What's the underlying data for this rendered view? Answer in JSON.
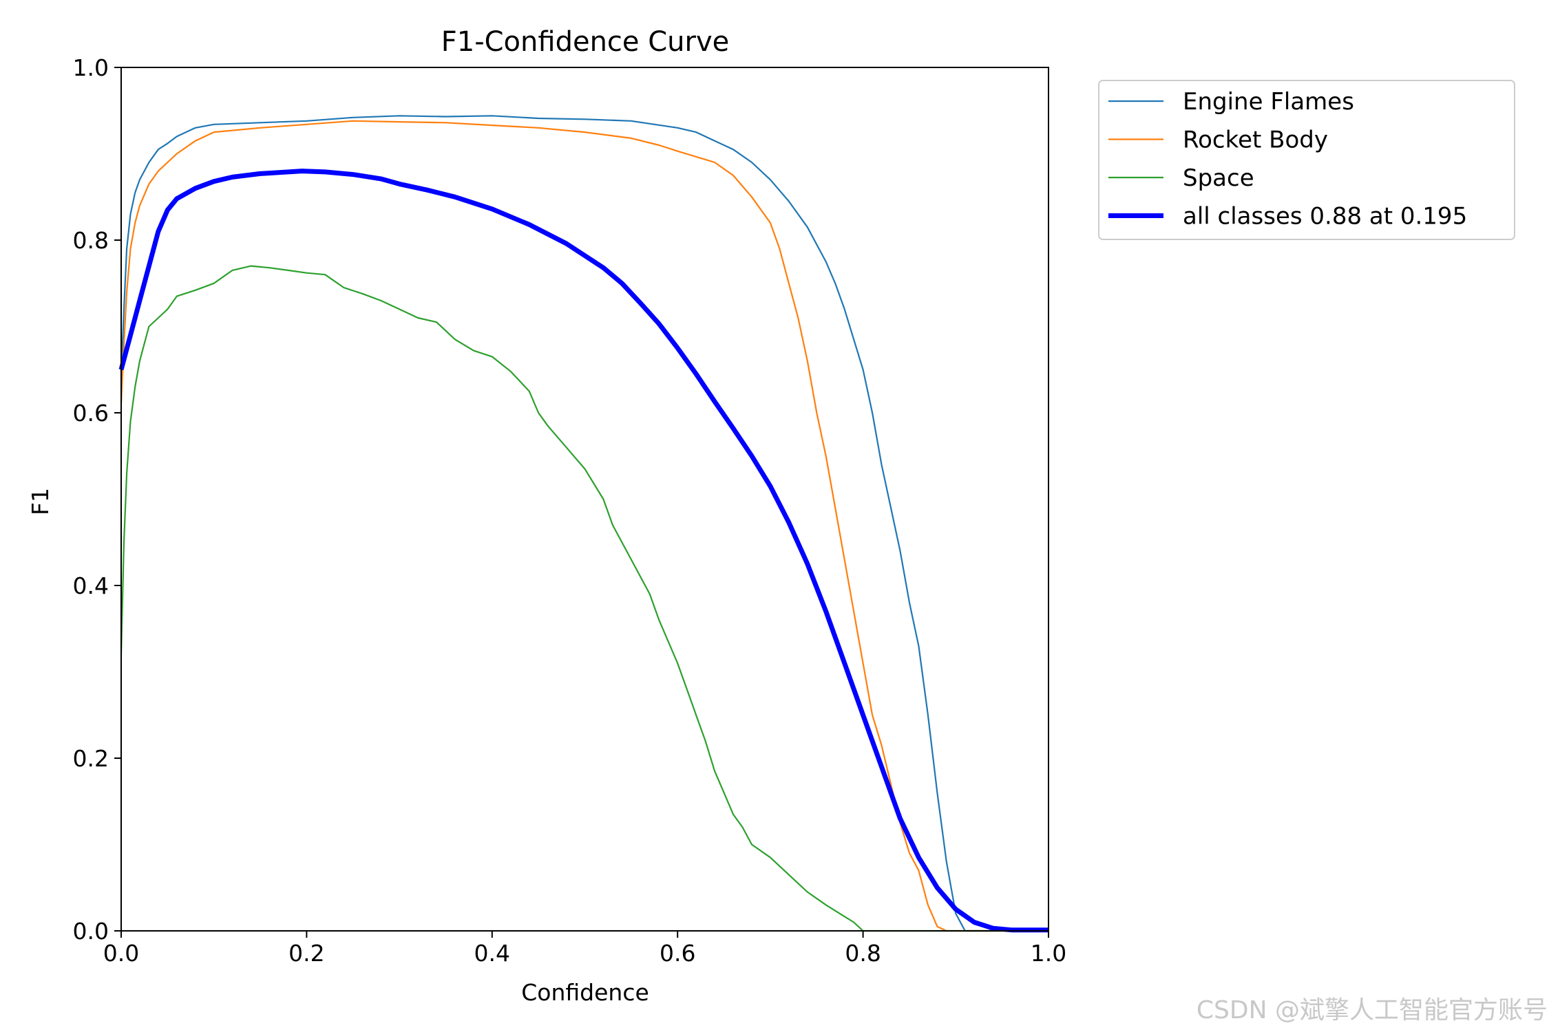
{
  "chart_data": {
    "type": "line",
    "title": "F1-Confidence Curve",
    "xlabel": "Confidence",
    "ylabel": "F1",
    "xlim": [
      0,
      1
    ],
    "ylim": [
      0,
      1
    ],
    "x_ticks": [
      "0.0",
      "0.2",
      "0.4",
      "0.6",
      "0.8",
      "1.0"
    ],
    "y_ticks": [
      "0.0",
      "0.2",
      "0.4",
      "0.6",
      "0.8",
      "1.0"
    ],
    "grid": false,
    "legend_position": "outside-top-right",
    "series": [
      {
        "name": "Engine Flames",
        "color": "#1f77b4",
        "width": "thin",
        "points": [
          [
            0,
            0.64
          ],
          [
            0.003,
            0.72
          ],
          [
            0.006,
            0.79
          ],
          [
            0.01,
            0.83
          ],
          [
            0.015,
            0.855
          ],
          [
            0.02,
            0.87
          ],
          [
            0.03,
            0.89
          ],
          [
            0.04,
            0.905
          ],
          [
            0.05,
            0.912
          ],
          [
            0.06,
            0.92
          ],
          [
            0.08,
            0.93
          ],
          [
            0.1,
            0.934
          ],
          [
            0.15,
            0.936
          ],
          [
            0.2,
            0.938
          ],
          [
            0.25,
            0.942
          ],
          [
            0.3,
            0.944
          ],
          [
            0.35,
            0.943
          ],
          [
            0.4,
            0.944
          ],
          [
            0.45,
            0.941
          ],
          [
            0.5,
            0.94
          ],
          [
            0.55,
            0.938
          ],
          [
            0.6,
            0.93
          ],
          [
            0.62,
            0.925
          ],
          [
            0.64,
            0.915
          ],
          [
            0.66,
            0.905
          ],
          [
            0.68,
            0.89
          ],
          [
            0.7,
            0.87
          ],
          [
            0.72,
            0.845
          ],
          [
            0.74,
            0.815
          ],
          [
            0.76,
            0.775
          ],
          [
            0.77,
            0.75
          ],
          [
            0.78,
            0.72
          ],
          [
            0.8,
            0.65
          ],
          [
            0.81,
            0.6
          ],
          [
            0.82,
            0.54
          ],
          [
            0.83,
            0.49
          ],
          [
            0.84,
            0.44
          ],
          [
            0.85,
            0.38
          ],
          [
            0.86,
            0.33
          ],
          [
            0.87,
            0.25
          ],
          [
            0.88,
            0.16
          ],
          [
            0.89,
            0.08
          ],
          [
            0.9,
            0.02
          ],
          [
            0.91,
            0.0
          ],
          [
            1.0,
            0.0
          ]
        ]
      },
      {
        "name": "Rocket Body",
        "color": "#ff7f0e",
        "width": "thin",
        "points": [
          [
            0,
            0.61
          ],
          [
            0.003,
            0.68
          ],
          [
            0.006,
            0.74
          ],
          [
            0.01,
            0.79
          ],
          [
            0.015,
            0.82
          ],
          [
            0.02,
            0.84
          ],
          [
            0.03,
            0.865
          ],
          [
            0.04,
            0.88
          ],
          [
            0.05,
            0.89
          ],
          [
            0.06,
            0.9
          ],
          [
            0.08,
            0.915
          ],
          [
            0.1,
            0.925
          ],
          [
            0.15,
            0.93
          ],
          [
            0.2,
            0.934
          ],
          [
            0.25,
            0.938
          ],
          [
            0.3,
            0.937
          ],
          [
            0.35,
            0.936
          ],
          [
            0.4,
            0.933
          ],
          [
            0.45,
            0.93
          ],
          [
            0.5,
            0.925
          ],
          [
            0.55,
            0.918
          ],
          [
            0.58,
            0.91
          ],
          [
            0.6,
            0.903
          ],
          [
            0.64,
            0.89
          ],
          [
            0.66,
            0.875
          ],
          [
            0.68,
            0.85
          ],
          [
            0.7,
            0.82
          ],
          [
            0.71,
            0.79
          ],
          [
            0.72,
            0.75
          ],
          [
            0.73,
            0.71
          ],
          [
            0.74,
            0.66
          ],
          [
            0.75,
            0.6
          ],
          [
            0.76,
            0.55
          ],
          [
            0.77,
            0.49
          ],
          [
            0.78,
            0.43
          ],
          [
            0.79,
            0.37
          ],
          [
            0.8,
            0.31
          ],
          [
            0.81,
            0.25
          ],
          [
            0.82,
            0.215
          ],
          [
            0.83,
            0.17
          ],
          [
            0.84,
            0.125
          ],
          [
            0.85,
            0.09
          ],
          [
            0.86,
            0.07
          ],
          [
            0.87,
            0.03
          ],
          [
            0.88,
            0.005
          ],
          [
            0.89,
            0.0
          ],
          [
            1.0,
            0.0
          ]
        ]
      },
      {
        "name": "Space",
        "color": "#2ca02c",
        "width": "thin",
        "points": [
          [
            0,
            0.32
          ],
          [
            0.003,
            0.45
          ],
          [
            0.006,
            0.53
          ],
          [
            0.01,
            0.59
          ],
          [
            0.015,
            0.63
          ],
          [
            0.02,
            0.66
          ],
          [
            0.03,
            0.7
          ],
          [
            0.04,
            0.71
          ],
          [
            0.05,
            0.72
          ],
          [
            0.06,
            0.735
          ],
          [
            0.08,
            0.742
          ],
          [
            0.1,
            0.75
          ],
          [
            0.12,
            0.765
          ],
          [
            0.14,
            0.77
          ],
          [
            0.16,
            0.768
          ],
          [
            0.18,
            0.765
          ],
          [
            0.2,
            0.762
          ],
          [
            0.22,
            0.76
          ],
          [
            0.24,
            0.745
          ],
          [
            0.26,
            0.738
          ],
          [
            0.28,
            0.73
          ],
          [
            0.3,
            0.72
          ],
          [
            0.32,
            0.71
          ],
          [
            0.34,
            0.705
          ],
          [
            0.36,
            0.685
          ],
          [
            0.38,
            0.672
          ],
          [
            0.4,
            0.665
          ],
          [
            0.42,
            0.648
          ],
          [
            0.44,
            0.625
          ],
          [
            0.45,
            0.6
          ],
          [
            0.46,
            0.585
          ],
          [
            0.48,
            0.56
          ],
          [
            0.5,
            0.535
          ],
          [
            0.52,
            0.5
          ],
          [
            0.53,
            0.47
          ],
          [
            0.55,
            0.43
          ],
          [
            0.57,
            0.39
          ],
          [
            0.58,
            0.36
          ],
          [
            0.6,
            0.31
          ],
          [
            0.61,
            0.28
          ],
          [
            0.62,
            0.25
          ],
          [
            0.63,
            0.22
          ],
          [
            0.64,
            0.185
          ],
          [
            0.65,
            0.16
          ],
          [
            0.66,
            0.135
          ],
          [
            0.67,
            0.12
          ],
          [
            0.68,
            0.1
          ],
          [
            0.7,
            0.085
          ],
          [
            0.72,
            0.065
          ],
          [
            0.74,
            0.045
          ],
          [
            0.76,
            0.03
          ],
          [
            0.775,
            0.02
          ],
          [
            0.79,
            0.01
          ],
          [
            0.8,
            0.0
          ],
          [
            1.0,
            0.0
          ]
        ]
      },
      {
        "name": "all classes 0.88 at 0.195",
        "color": "#0000ff",
        "width": "thick",
        "points": [
          [
            0,
            0.65
          ],
          [
            0.01,
            0.69
          ],
          [
            0.02,
            0.73
          ],
          [
            0.03,
            0.77
          ],
          [
            0.04,
            0.81
          ],
          [
            0.05,
            0.835
          ],
          [
            0.06,
            0.848
          ],
          [
            0.08,
            0.86
          ],
          [
            0.1,
            0.868
          ],
          [
            0.12,
            0.873
          ],
          [
            0.15,
            0.877
          ],
          [
            0.195,
            0.88
          ],
          [
            0.22,
            0.879
          ],
          [
            0.25,
            0.876
          ],
          [
            0.28,
            0.871
          ],
          [
            0.3,
            0.865
          ],
          [
            0.33,
            0.858
          ],
          [
            0.36,
            0.85
          ],
          [
            0.4,
            0.836
          ],
          [
            0.44,
            0.818
          ],
          [
            0.48,
            0.796
          ],
          [
            0.52,
            0.768
          ],
          [
            0.54,
            0.75
          ],
          [
            0.56,
            0.727
          ],
          [
            0.58,
            0.703
          ],
          [
            0.6,
            0.675
          ],
          [
            0.62,
            0.645
          ],
          [
            0.64,
            0.613
          ],
          [
            0.66,
            0.582
          ],
          [
            0.68,
            0.55
          ],
          [
            0.7,
            0.515
          ],
          [
            0.72,
            0.473
          ],
          [
            0.74,
            0.425
          ],
          [
            0.76,
            0.37
          ],
          [
            0.78,
            0.31
          ],
          [
            0.8,
            0.25
          ],
          [
            0.82,
            0.19
          ],
          [
            0.84,
            0.13
          ],
          [
            0.86,
            0.085
          ],
          [
            0.88,
            0.05
          ],
          [
            0.9,
            0.025
          ],
          [
            0.92,
            0.01
          ],
          [
            0.94,
            0.003
          ],
          [
            0.96,
            0.001
          ],
          [
            1.0,
            0.001
          ]
        ]
      }
    ]
  },
  "watermark": "CSDN @斌擎人工智能官方账号"
}
